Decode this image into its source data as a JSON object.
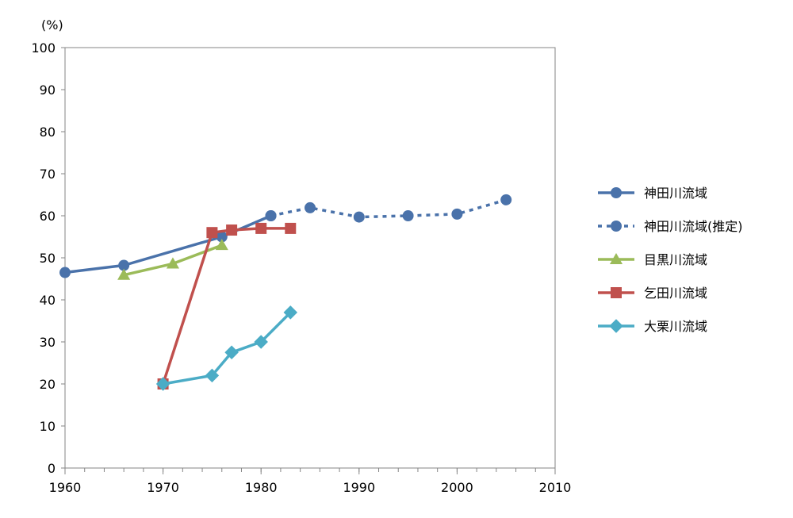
{
  "chart_data": {
    "type": "line",
    "ylabel": "(%)",
    "xlim": [
      1960,
      2010
    ],
    "ylim": [
      0,
      100
    ],
    "x_ticks": [
      1960,
      1970,
      1980,
      1990,
      2000,
      2010
    ],
    "y_ticks": [
      0,
      10,
      20,
      30,
      40,
      50,
      60,
      70,
      80,
      90,
      100
    ],
    "x_minor_step": 2,
    "grid": false,
    "legend_position": "right",
    "series": [
      {
        "name": "神田川流域",
        "color": "#4a72aa",
        "marker": "circle",
        "dash": "solid",
        "points": [
          [
            1960,
            46.5
          ],
          [
            1966,
            48.2
          ],
          [
            1976,
            55
          ],
          [
            1981,
            60
          ]
        ]
      },
      {
        "name": "神田川流域(推定)",
        "color": "#4a72aa",
        "marker": "circle",
        "dash": "dotted",
        "points": [
          [
            1981,
            60
          ],
          [
            1985,
            61.9
          ],
          [
            1990,
            59.7
          ],
          [
            1995,
            60
          ],
          [
            2000,
            60.4
          ],
          [
            2005,
            63.8
          ]
        ]
      },
      {
        "name": "目黒川流域",
        "color": "#9bbb59",
        "marker": "triangle",
        "dash": "solid",
        "points": [
          [
            1966,
            45.9
          ],
          [
            1971,
            48.6
          ],
          [
            1976,
            53
          ]
        ]
      },
      {
        "name": "乞田川流域",
        "color": "#c0504d",
        "marker": "square",
        "dash": "solid",
        "points": [
          [
            1970,
            20
          ],
          [
            1975,
            56
          ],
          [
            1977,
            56.6
          ],
          [
            1980,
            57
          ],
          [
            1983,
            57
          ]
        ]
      },
      {
        "name": "大栗川流域",
        "color": "#4bacc6",
        "marker": "diamond",
        "dash": "solid",
        "points": [
          [
            1970,
            20
          ],
          [
            1975,
            22
          ],
          [
            1977,
            27.5
          ],
          [
            1980,
            30
          ],
          [
            1983,
            37
          ]
        ]
      }
    ]
  }
}
